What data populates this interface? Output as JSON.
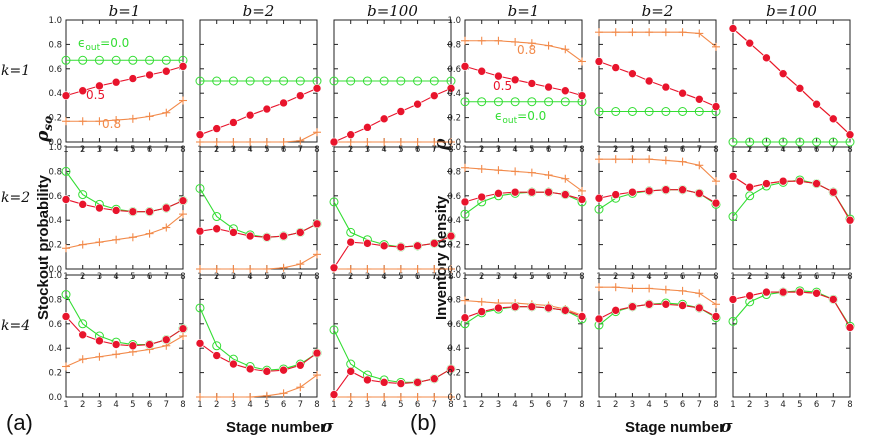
{
  "figure": {
    "panels": [
      {
        "label": "(a)",
        "ylabel": "Stockout  probability",
        "ysymbol": "ρ",
        "ysymbol_sub": "so",
        "xlabel": "Stage number",
        "xsymbol": "σ"
      },
      {
        "label": "(b)",
        "ylabel": "Inventory density",
        "ysymbol": "ρ",
        "ysymbol_sub": "",
        "xlabel": "Stage number",
        "xsymbol": "σ"
      }
    ],
    "column_titles": [
      "b=1",
      "b=2",
      "b=100"
    ],
    "row_titles": [
      "k=1",
      "k=2",
      "k=4"
    ],
    "colors": {
      "eps0": "#33dd33",
      "eps05": "#e8142c",
      "eps08": "#f28a4a",
      "axis": "#222222"
    }
  },
  "chart_data": [
    {
      "type": "line",
      "panel": "(a)",
      "title": "Stockout probability ρso vs stage number σ",
      "xlabel": "Stage number σ",
      "ylabel": "Stockout probability ρso",
      "x": [
        1,
        2,
        3,
        4,
        5,
        6,
        7,
        8
      ],
      "xticks": [
        "1",
        "2",
        "3",
        "4",
        "5",
        "6",
        "7",
        "8"
      ],
      "ylim": [
        0,
        1
      ],
      "yticks": [
        "0.0",
        "0.2",
        "0.4",
        "0.6",
        "0.8",
        "1.0"
      ],
      "legend": [
        {
          "series": "eps0",
          "label": "ϵ",
          "sub": "out",
          "value": "=0.0"
        },
        {
          "series": "eps05",
          "label": "0.5"
        },
        {
          "series": "eps08",
          "label": "0.8"
        }
      ],
      "subplots": [
        {
          "row": "k=1",
          "col": "b=1",
          "series": {
            "eps0": [
              0.67,
              0.67,
              0.67,
              0.67,
              0.67,
              0.67,
              0.67,
              0.67
            ],
            "eps05": [
              0.38,
              0.42,
              0.46,
              0.49,
              0.52,
              0.55,
              0.58,
              0.62
            ],
            "eps08": [
              0.17,
              0.17,
              0.17,
              0.18,
              0.19,
              0.21,
              0.24,
              0.34
            ]
          }
        },
        {
          "row": "k=1",
          "col": "b=2",
          "series": {
            "eps0": [
              0.5,
              0.5,
              0.5,
              0.5,
              0.5,
              0.5,
              0.5,
              0.5
            ],
            "eps05": [
              0.06,
              0.11,
              0.16,
              0.22,
              0.27,
              0.32,
              0.38,
              0.44
            ],
            "eps08": [
              0.0,
              0.0,
              0.0,
              0.0,
              0.0,
              0.0,
              0.01,
              0.08
            ]
          }
        },
        {
          "row": "k=1",
          "col": "b=100",
          "series": {
            "eps0": [
              0.5,
              0.5,
              0.5,
              0.5,
              0.5,
              0.5,
              0.5,
              0.5
            ],
            "eps05": [
              0.0,
              0.06,
              0.12,
              0.19,
              0.25,
              0.31,
              0.38,
              0.44
            ],
            "eps08": [
              0.0,
              0.0,
              0.0,
              0.0,
              0.0,
              0.0,
              0.0,
              0.0
            ]
          }
        },
        {
          "row": "k=2",
          "col": "b=1",
          "series": {
            "eps0": [
              0.8,
              0.61,
              0.53,
              0.49,
              0.47,
              0.47,
              0.5,
              0.56
            ],
            "eps05": [
              0.57,
              0.53,
              0.5,
              0.48,
              0.47,
              0.47,
              0.5,
              0.56
            ],
            "eps08": [
              0.17,
              0.2,
              0.22,
              0.24,
              0.26,
              0.29,
              0.34,
              0.45
            ]
          }
        },
        {
          "row": "k=2",
          "col": "b=2",
          "series": {
            "eps0": [
              0.66,
              0.43,
              0.33,
              0.28,
              0.26,
              0.27,
              0.3,
              0.37
            ],
            "eps05": [
              0.31,
              0.33,
              0.3,
              0.27,
              0.26,
              0.27,
              0.3,
              0.37
            ],
            "eps08": [
              0.0,
              0.0,
              0.0,
              0.0,
              0.0,
              0.01,
              0.04,
              0.12
            ]
          }
        },
        {
          "row": "k=2",
          "col": "b=100",
          "series": {
            "eps0": [
              0.55,
              0.3,
              0.24,
              0.2,
              0.18,
              0.19,
              0.21,
              0.27
            ],
            "eps05": [
              0.01,
              0.22,
              0.21,
              0.19,
              0.18,
              0.19,
              0.21,
              0.27
            ],
            "eps08": [
              0.0,
              0.0,
              0.0,
              0.0,
              0.0,
              0.0,
              0.0,
              0.0
            ]
          }
        },
        {
          "row": "k=4",
          "col": "b=1",
          "series": {
            "eps0": [
              0.84,
              0.6,
              0.5,
              0.45,
              0.43,
              0.43,
              0.47,
              0.56
            ],
            "eps05": [
              0.66,
              0.51,
              0.46,
              0.43,
              0.42,
              0.43,
              0.47,
              0.56
            ],
            "eps08": [
              0.25,
              0.31,
              0.33,
              0.35,
              0.37,
              0.39,
              0.42,
              0.5
            ]
          }
        },
        {
          "row": "k=4",
          "col": "b=2",
          "series": {
            "eps0": [
              0.73,
              0.42,
              0.31,
              0.25,
              0.22,
              0.23,
              0.27,
              0.36
            ],
            "eps05": [
              0.44,
              0.34,
              0.27,
              0.23,
              0.21,
              0.22,
              0.26,
              0.36
            ],
            "eps08": [
              0.0,
              0.0,
              0.0,
              0.0,
              0.01,
              0.03,
              0.08,
              0.18
            ]
          }
        },
        {
          "row": "k=4",
          "col": "b=100",
          "series": {
            "eps0": [
              0.55,
              0.27,
              0.18,
              0.14,
              0.12,
              0.12,
              0.15,
              0.23
            ],
            "eps05": [
              0.02,
              0.21,
              0.14,
              0.12,
              0.11,
              0.12,
              0.15,
              0.23
            ],
            "eps08": [
              0.0,
              0.0,
              0.0,
              0.0,
              0.0,
              0.0,
              0.0,
              0.0
            ]
          }
        }
      ]
    },
    {
      "type": "line",
      "panel": "(b)",
      "title": "Inventory density ρ vs stage number σ",
      "xlabel": "Stage number σ",
      "ylabel": "Inventory density ρ",
      "x": [
        1,
        2,
        3,
        4,
        5,
        6,
        7,
        8
      ],
      "xticks": [
        "1",
        "2",
        "3",
        "4",
        "5",
        "6",
        "7",
        "8"
      ],
      "ylim": [
        0,
        1
      ],
      "yticks": [
        "0.0",
        "0.2",
        "0.4",
        "0.6",
        "0.8",
        "1.0"
      ],
      "legend": [
        {
          "series": "eps08",
          "label": "0.8"
        },
        {
          "series": "eps05",
          "label": "0.5"
        },
        {
          "series": "eps0",
          "label": "ϵ",
          "sub": "out",
          "value": "=0.0"
        }
      ],
      "subplots": [
        {
          "row": "k=1",
          "col": "b=1",
          "series": {
            "eps0": [
              0.33,
              0.33,
              0.33,
              0.33,
              0.33,
              0.33,
              0.33,
              0.33
            ],
            "eps05": [
              0.62,
              0.58,
              0.54,
              0.51,
              0.48,
              0.45,
              0.42,
              0.38
            ],
            "eps08": [
              0.83,
              0.83,
              0.83,
              0.82,
              0.81,
              0.79,
              0.76,
              0.66
            ]
          }
        },
        {
          "row": "k=1",
          "col": "b=2",
          "series": {
            "eps0": [
              0.25,
              0.25,
              0.25,
              0.25,
              0.25,
              0.25,
              0.25,
              0.25
            ],
            "eps05": [
              0.66,
              0.61,
              0.56,
              0.5,
              0.45,
              0.4,
              0.35,
              0.29
            ],
            "eps08": [
              0.9,
              0.9,
              0.9,
              0.9,
              0.9,
              0.9,
              0.89,
              0.78
            ]
          }
        },
        {
          "row": "k=1",
          "col": "b=100",
          "series": {
            "eps0": [
              0.0,
              0.0,
              0.0,
              0.0,
              0.0,
              0.0,
              0.0,
              0.0
            ],
            "eps05": [
              0.93,
              0.81,
              0.69,
              0.56,
              0.44,
              0.31,
              0.19,
              0.06
            ],
            "eps08": [
              0.93,
              0.81,
              0.69,
              0.56,
              0.44,
              0.31,
              0.19,
              0.06
            ]
          }
        },
        {
          "row": "k=2",
          "col": "b=1",
          "series": {
            "eps0": [
              0.45,
              0.55,
              0.6,
              0.62,
              0.63,
              0.63,
              0.61,
              0.55
            ],
            "eps05": [
              0.55,
              0.59,
              0.62,
              0.63,
              0.63,
              0.63,
              0.61,
              0.57
            ],
            "eps08": [
              0.83,
              0.82,
              0.81,
              0.8,
              0.79,
              0.77,
              0.74,
              0.64
            ]
          }
        },
        {
          "row": "k=2",
          "col": "b=2",
          "series": {
            "eps0": [
              0.49,
              0.58,
              0.62,
              0.64,
              0.65,
              0.65,
              0.62,
              0.53
            ],
            "eps05": [
              0.58,
              0.61,
              0.63,
              0.64,
              0.65,
              0.65,
              0.62,
              0.54
            ],
            "eps08": [
              0.9,
              0.9,
              0.9,
              0.9,
              0.89,
              0.88,
              0.85,
              0.72
            ]
          }
        },
        {
          "row": "k=2",
          "col": "b=100",
          "series": {
            "eps0": [
              0.43,
              0.6,
              0.68,
              0.71,
              0.73,
              0.7,
              0.63,
              0.41
            ],
            "eps05": [
              0.76,
              0.67,
              0.7,
              0.72,
              0.72,
              0.7,
              0.63,
              0.4
            ],
            "eps08": [
              0.76,
              0.67,
              0.7,
              0.72,
              0.72,
              0.7,
              0.63,
              0.4
            ]
          }
        },
        {
          "row": "k=4",
          "col": "b=1",
          "series": {
            "eps0": [
              0.6,
              0.69,
              0.72,
              0.74,
              0.74,
              0.73,
              0.71,
              0.64
            ],
            "eps05": [
              0.65,
              0.7,
              0.73,
              0.74,
              0.74,
              0.73,
              0.71,
              0.66
            ],
            "eps08": [
              0.79,
              0.78,
              0.77,
              0.77,
              0.76,
              0.75,
              0.72,
              0.67
            ]
          }
        },
        {
          "row": "k=4",
          "col": "b=2",
          "series": {
            "eps0": [
              0.59,
              0.7,
              0.74,
              0.76,
              0.77,
              0.76,
              0.73,
              0.65
            ],
            "eps05": [
              0.64,
              0.71,
              0.74,
              0.76,
              0.76,
              0.75,
              0.73,
              0.66
            ],
            "eps08": [
              0.9,
              0.9,
              0.89,
              0.89,
              0.88,
              0.87,
              0.85,
              0.76
            ]
          }
        },
        {
          "row": "k=4",
          "col": "b=100",
          "series": {
            "eps0": [
              0.62,
              0.78,
              0.84,
              0.86,
              0.87,
              0.86,
              0.8,
              0.58
            ],
            "eps05": [
              0.8,
              0.83,
              0.86,
              0.86,
              0.86,
              0.85,
              0.8,
              0.57
            ],
            "eps08": [
              0.8,
              0.83,
              0.86,
              0.86,
              0.86,
              0.85,
              0.8,
              0.57
            ]
          }
        }
      ]
    }
  ]
}
